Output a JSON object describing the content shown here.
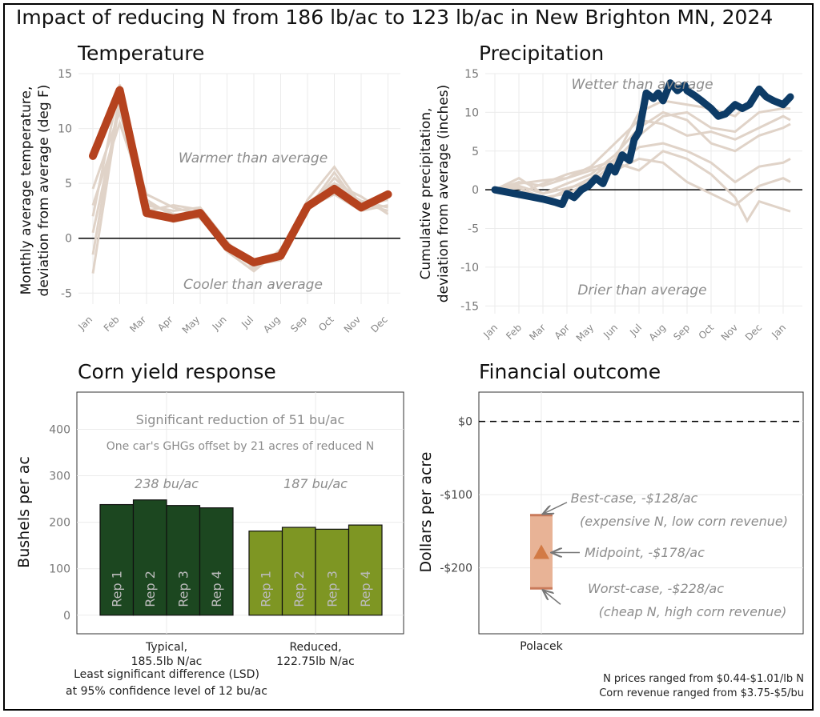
{
  "title": "Impact of reducing N from 186 lb/ac to 123 lb/ac in New Brighton MN, 2024",
  "colors": {
    "main_line_temp": "#B5421E",
    "main_line_precip": "#0D3B66",
    "ghost_lines": "#E0D3C8",
    "typical_bar": "#1C4720",
    "reduced_bar": "#7E9623",
    "range_box": "#E8B396",
    "midpoint": "#D27A45",
    "annotation_text": "#8C8C8C",
    "grid": "#EBEBEB"
  },
  "chart_data": [
    {
      "id": "temperature",
      "type": "line",
      "title": "Temperature",
      "ylabel_line1": "Monthly average temperature,",
      "ylabel_line2": "deviation from average (deg F)",
      "ylim": [
        -6,
        15
      ],
      "yticks": [
        -5,
        0,
        5,
        10,
        15
      ],
      "categories": [
        "Jan",
        "Feb",
        "Mar",
        "Apr",
        "May",
        "Jun",
        "Jul",
        "Aug",
        "Sep",
        "Oct",
        "Nov",
        "Dec"
      ],
      "series": [
        {
          "name": "2024",
          "values": [
            7.5,
            13.5,
            2.3,
            1.8,
            2.3,
            -0.8,
            -2.2,
            -1.6,
            2.9,
            4.5,
            2.8,
            4.0
          ]
        }
      ],
      "ghost_series": [
        [
          -3.2,
          12.5,
          3.0,
          2.5,
          2.8,
          -0.3,
          -2.8,
          -1.2,
          2.5,
          5.5,
          3.2,
          2.5
        ],
        [
          2.0,
          14.0,
          3.5,
          2.0,
          2.5,
          -0.5,
          -2.5,
          -1.8,
          3.5,
          6.5,
          3.0,
          3.5
        ],
        [
          4.5,
          11.5,
          2.8,
          1.5,
          2.0,
          -0.8,
          -2.0,
          -1.5,
          2.8,
          4.0,
          2.5,
          3.0
        ],
        [
          0.5,
          12.0,
          4.0,
          2.8,
          2.2,
          -1.2,
          -3.0,
          -1.0,
          3.2,
          5.0,
          3.8,
          2.2
        ],
        [
          -1.5,
          13.0,
          2.5,
          3.0,
          2.6,
          -0.6,
          -2.4,
          -2.0,
          2.6,
          6.0,
          2.6,
          3.8
        ],
        [
          3.0,
          10.5,
          3.2,
          2.2,
          1.8,
          -1.0,
          -2.6,
          -1.4,
          3.0,
          4.8,
          3.4,
          2.8
        ]
      ],
      "annotations": {
        "above": "Warmer than average",
        "below": "Cooler than average"
      }
    },
    {
      "id": "precipitation",
      "type": "line",
      "title": "Precipitation",
      "ylabel_line1": "Cumulative precipitation,",
      "ylabel_line2": "deviation from average (inches)",
      "ylim": [
        -16,
        15
      ],
      "yticks": [
        -15,
        -10,
        -5,
        0,
        5,
        10,
        15
      ],
      "categories": [
        "Jan",
        "Feb",
        "Mar",
        "Apr",
        "May",
        "Jun",
        "Jul",
        "Aug",
        "Sep",
        "Oct",
        "Nov",
        "Dec",
        "Jan"
      ],
      "series": [
        {
          "name": "2024",
          "x": [
            0,
            0.5,
            1,
            1.5,
            2,
            2.5,
            2.8,
            3,
            3.3,
            3.6,
            3.9,
            4.2,
            4.5,
            4.8,
            5,
            5.3,
            5.6,
            5.8,
            6,
            6.3,
            6.6,
            6.8,
            7,
            7.3,
            7.6,
            7.9,
            8,
            8.3,
            8.6,
            9,
            9.3,
            9.6,
            10,
            10.3,
            10.6,
            11,
            11.3,
            11.6,
            12,
            12.3
          ],
          "values": [
            0,
            -0.3,
            -0.6,
            -0.9,
            -1.2,
            -1.6,
            -1.9,
            -0.5,
            -1.0,
            0.0,
            0.5,
            1.5,
            0.8,
            3.0,
            2.3,
            4.5,
            3.8,
            6.5,
            7.5,
            12.5,
            11.8,
            12.5,
            11.5,
            13.8,
            12.8,
            13.5,
            12.8,
            12.2,
            11.5,
            10.5,
            9.5,
            9.8,
            11.0,
            10.5,
            11.0,
            13.0,
            12.0,
            11.5,
            11.0,
            12.0
          ]
        }
      ],
      "ghost_series": [
        [
          [
            0,
            0
          ],
          [
            1,
            0.5
          ],
          [
            2,
            -0.5
          ],
          [
            3,
            0.2
          ],
          [
            4,
            1.0
          ],
          [
            5,
            3.5
          ],
          [
            6,
            2.5
          ],
          [
            7,
            5.0
          ],
          [
            8,
            4.0
          ],
          [
            9,
            2.0
          ],
          [
            10,
            -1.0
          ],
          [
            10.5,
            -4.0
          ],
          [
            11,
            -1.5
          ],
          [
            12,
            -2.5
          ],
          [
            12.3,
            -2.8
          ]
        ],
        [
          [
            0,
            0
          ],
          [
            1,
            1.5
          ],
          [
            2,
            -0.5
          ],
          [
            3,
            0.8
          ],
          [
            4,
            2.0
          ],
          [
            5,
            4.5
          ],
          [
            6,
            8.0
          ],
          [
            7,
            10.0
          ],
          [
            8,
            9.0
          ],
          [
            9,
            6.0
          ],
          [
            10,
            5.0
          ],
          [
            11,
            7.0
          ],
          [
            12,
            8.0
          ],
          [
            12.3,
            8.5
          ]
        ],
        [
          [
            0,
            0
          ],
          [
            1,
            -0.8
          ],
          [
            2,
            -1.5
          ],
          [
            3,
            0.0
          ],
          [
            4,
            1.5
          ],
          [
            5,
            4.0
          ],
          [
            6,
            10.0
          ],
          [
            7,
            11.5
          ],
          [
            8,
            11.0
          ],
          [
            9,
            10.5
          ],
          [
            10,
            9.5
          ],
          [
            11,
            12.5
          ],
          [
            12,
            11.0
          ],
          [
            12.3,
            11.5
          ]
        ],
        [
          [
            0,
            0
          ],
          [
            1,
            0.8
          ],
          [
            2,
            1.2
          ],
          [
            3,
            1.5
          ],
          [
            4,
            2.5
          ],
          [
            5,
            3.0
          ],
          [
            6,
            5.5
          ],
          [
            7,
            6.0
          ],
          [
            8,
            5.0
          ],
          [
            9,
            3.5
          ],
          [
            10,
            1.0
          ],
          [
            11,
            3.0
          ],
          [
            12,
            3.5
          ],
          [
            12.3,
            4.0
          ]
        ],
        [
          [
            0,
            0
          ],
          [
            1,
            0.2
          ],
          [
            2,
            -1.0
          ],
          [
            3,
            -0.5
          ],
          [
            4,
            1.0
          ],
          [
            5,
            2.5
          ],
          [
            6,
            4.0
          ],
          [
            7,
            3.5
          ],
          [
            8,
            1.0
          ],
          [
            9,
            -0.5
          ],
          [
            10,
            -2.0
          ],
          [
            11,
            0.5
          ],
          [
            12,
            1.5
          ],
          [
            12.3,
            1.0
          ]
        ],
        [
          [
            0,
            0
          ],
          [
            1,
            1.0
          ],
          [
            2,
            0.5
          ],
          [
            3,
            1.5
          ],
          [
            4,
            3.0
          ],
          [
            5,
            6.0
          ],
          [
            6,
            9.0
          ],
          [
            7,
            8.5
          ],
          [
            8,
            7.0
          ],
          [
            9,
            7.5
          ],
          [
            10,
            6.5
          ],
          [
            11,
            8.0
          ],
          [
            12,
            9.5
          ],
          [
            12.3,
            9.0
          ]
        ],
        [
          [
            0,
            0
          ],
          [
            1,
            -0.5
          ],
          [
            2,
            0.8
          ],
          [
            3,
            2.0
          ],
          [
            4,
            2.8
          ],
          [
            5,
            3.8
          ],
          [
            6,
            7.0
          ],
          [
            7,
            9.5
          ],
          [
            8,
            10.0
          ],
          [
            9,
            8.0
          ],
          [
            10,
            7.5
          ],
          [
            11,
            10.0
          ],
          [
            12,
            10.5
          ],
          [
            12.3,
            10.5
          ]
        ]
      ],
      "annotations": {
        "above": "Wetter than average",
        "below": "Drier than average"
      }
    },
    {
      "id": "yield",
      "type": "bar",
      "title": "Corn yield response",
      "ylabel": "Bushels per ac",
      "ylim": [
        -40,
        480
      ],
      "yticks": [
        0,
        100,
        200,
        300,
        400
      ],
      "groups": [
        {
          "label_line1": "Typical,",
          "label_line2": "185.5lb N/ac",
          "mean_label": "238 bu/ac",
          "color_key": "typical_bar",
          "bars": [
            {
              "rep": "Rep 1",
              "value": 238
            },
            {
              "rep": "Rep 2",
              "value": 248
            },
            {
              "rep": "Rep 3",
              "value": 236
            },
            {
              "rep": "Rep 4",
              "value": 231
            }
          ]
        },
        {
          "label_line1": "Reduced,",
          "label_line2": "122.75lb N/ac",
          "mean_label": "187 bu/ac",
          "color_key": "reduced_bar",
          "bars": [
            {
              "rep": "Rep 1",
              "value": 181
            },
            {
              "rep": "Rep 2",
              "value": 189
            },
            {
              "rep": "Rep 3",
              "value": 185
            },
            {
              "rep": "Rep 4",
              "value": 194
            }
          ]
        }
      ],
      "headline": "Significant reduction of 51 bu/ac",
      "subheadline": "One car's GHGs offset by 21 acres of reduced N",
      "footnote_line1": "Least significant difference (LSD)",
      "footnote_line2": "at 95% confidence level of 12 bu/ac"
    },
    {
      "id": "financial",
      "type": "range",
      "title": "Financial outcome",
      "ylabel": "Dollars per acre",
      "ylim": [
        -290,
        40
      ],
      "yticks": [
        0,
        -100,
        -200
      ],
      "ytick_labels": [
        "$0",
        "-$100",
        "-$200"
      ],
      "category": "Polacek",
      "best_case": -128,
      "midpoint": -178,
      "worst_case": -228,
      "best_label": "Best-case, -$128/ac",
      "best_sub": "(expensive N, low corn revenue)",
      "mid_label": "Midpoint, -$178/ac",
      "worst_label": "Worst-case, -$228/ac",
      "worst_sub": "(cheap N,  high corn revenue)",
      "footnote_line1": "N prices ranged from $0.44-$1.01/lb N",
      "footnote_line2": "Corn revenue ranged from $3.75-$5/bu"
    }
  ]
}
